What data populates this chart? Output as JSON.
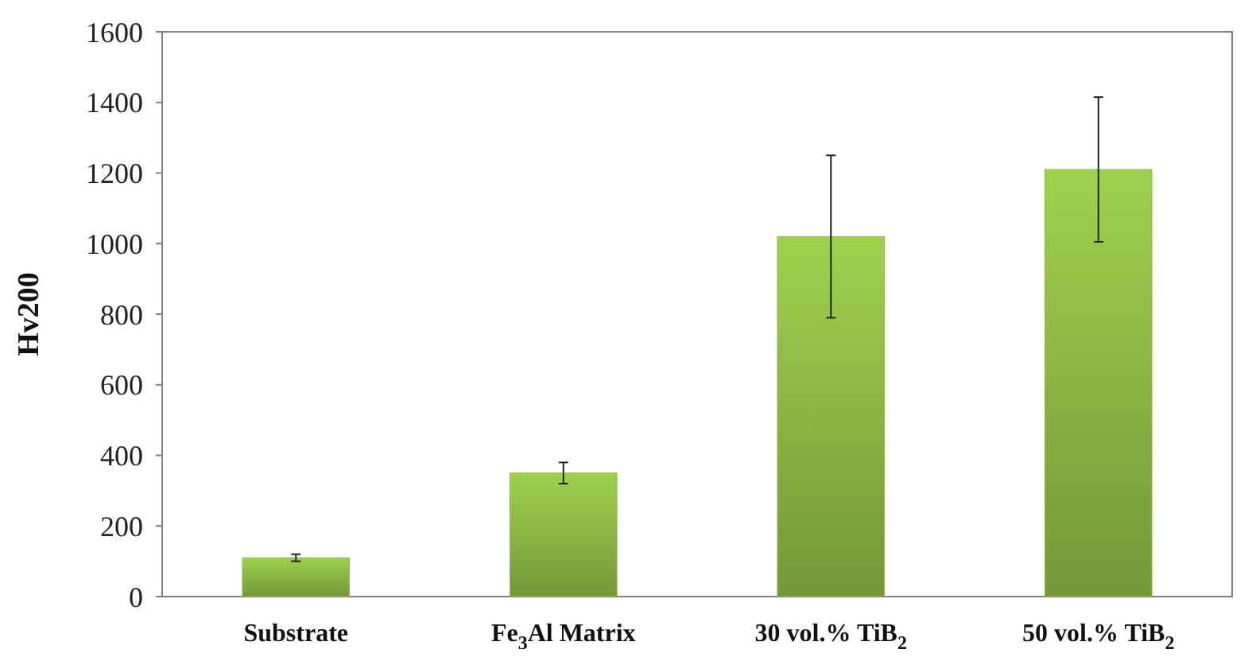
{
  "chart_data": {
    "type": "bar",
    "ylabel": "Hv200",
    "categories": [
      "Substrate",
      "Fe$_{3}$Al Matrix",
      "30 vol.% TiB$_{2}$",
      "50 vol.% TiB$_{2}$"
    ],
    "values": [
      110,
      350,
      1020,
      1210
    ],
    "errors": [
      10,
      30,
      230,
      205
    ],
    "color": "#8fbc45",
    "ylim": [
      0,
      1600
    ],
    "yticks": [
      0,
      200,
      400,
      600,
      800,
      1000,
      1200,
      1400,
      1600
    ],
    "grid": false
  }
}
